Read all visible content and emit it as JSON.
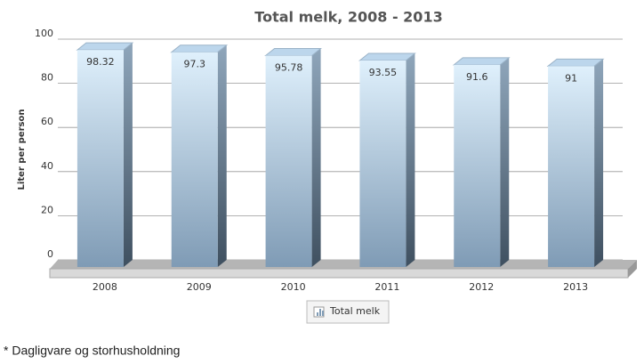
{
  "chart_data": {
    "type": "bar3d",
    "title": "Total melk, 2008 - 2013",
    "y_label": "Liter per person",
    "categories": [
      "2008",
      "2009",
      "2010",
      "2011",
      "2012",
      "2013"
    ],
    "series": [
      {
        "name": "Total melk",
        "color": "#7f9bb5",
        "values": [
          98.32,
          97.3,
          95.78,
          93.55,
          91.6,
          91
        ]
      }
    ],
    "ylim": [
      0,
      100
    ],
    "yticks": [
      0,
      20,
      40,
      60,
      80,
      100
    ],
    "grid": true,
    "legend": "bottom",
    "footnote": "* Dagligvare og storhusholdning"
  }
}
